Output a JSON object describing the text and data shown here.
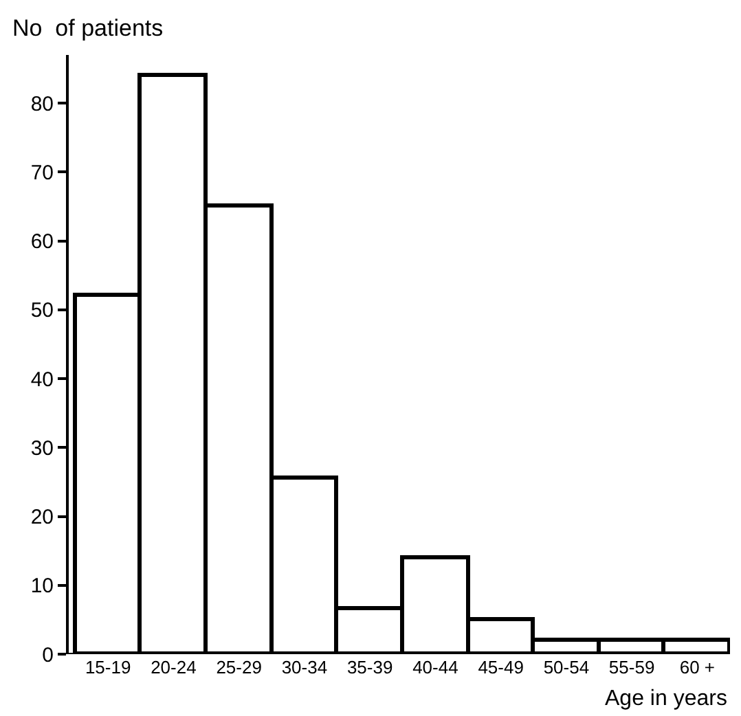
{
  "chart_data": {
    "type": "bar",
    "ylabel": "No  of patients",
    "xlabel": "Age in years",
    "categories": [
      "15-19",
      "20-24",
      "25-29",
      "30-34",
      "35-39",
      "40-44",
      "45-49",
      "50-54",
      "55-59",
      "60 +"
    ],
    "values": [
      52,
      84,
      65,
      25.5,
      6.5,
      14,
      5,
      2,
      2,
      2
    ],
    "color": "#ffffff",
    "ylim": [
      0,
      87
    ],
    "yticks": [
      0,
      10,
      20,
      30,
      40,
      50,
      60,
      70,
      80
    ],
    "grid": false
  }
}
